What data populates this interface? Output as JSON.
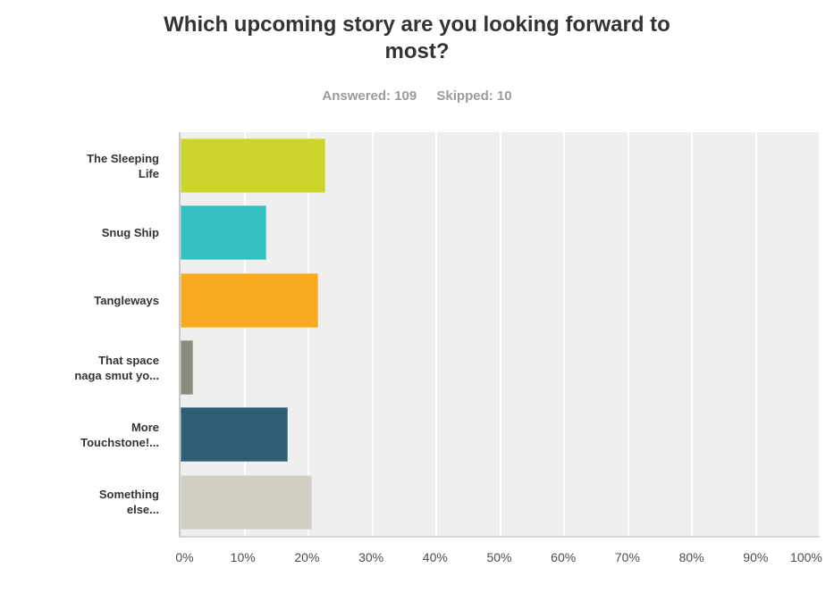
{
  "header": {
    "title": "Which upcoming story are you looking forward to most?",
    "answered_label": "Answered: 109",
    "skipped_label": "Skipped: 10"
  },
  "chart_data": {
    "type": "bar",
    "orientation": "horizontal",
    "title": "Which upcoming story are you looking forward to most?",
    "answered": 109,
    "skipped": 10,
    "categories": [
      "The Sleeping Life",
      "Snug Ship",
      "Tangleways",
      "That space naga smut yo...",
      "More Touchstone!...",
      "Something else..."
    ],
    "label_lines": [
      [
        "The Sleeping",
        "Life"
      ],
      [
        "Snug Ship"
      ],
      [
        "Tangleways"
      ],
      [
        "That space",
        "naga smut yo..."
      ],
      [
        "More",
        "Touchstone!..."
      ],
      [
        "Something",
        "else..."
      ]
    ],
    "values": [
      22.6,
      13.4,
      21.5,
      2.0,
      16.8,
      20.5
    ],
    "unit": "%",
    "bar_colors": [
      "#ccd52c",
      "#36bfc0",
      "#f9ab20",
      "#8c8c7c",
      "#2e5e72",
      "#d2d0c2"
    ],
    "xlabel": "",
    "ylabel": "",
    "xlim": [
      0,
      100
    ],
    "x_tick_step": 10,
    "x_ticks": [
      "0%",
      "10%",
      "20%",
      "30%",
      "40%",
      "50%",
      "60%",
      "70%",
      "80%",
      "90%",
      "100%"
    ],
    "grid": true,
    "legend": false,
    "plot_background": "#efefef",
    "gridline_color": "#ffffff",
    "axis_line_color": "#c9c9c9"
  }
}
